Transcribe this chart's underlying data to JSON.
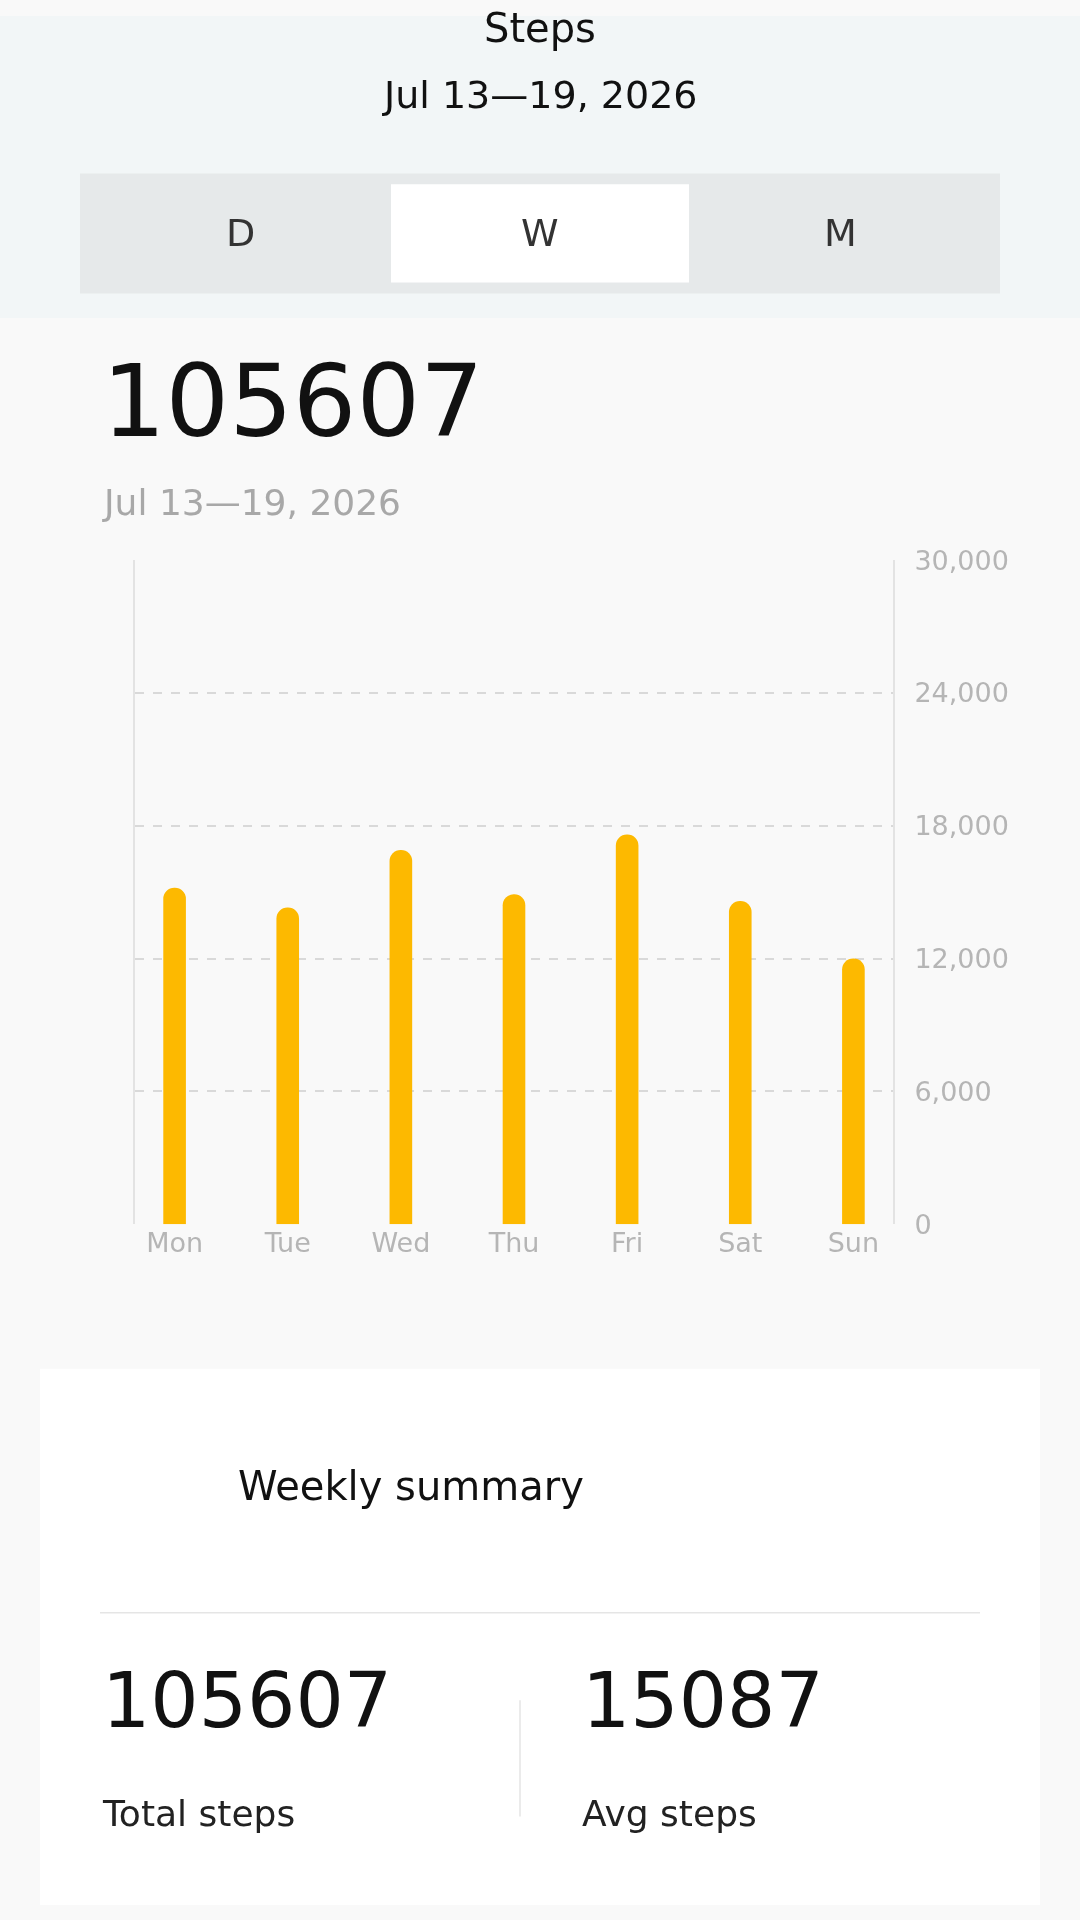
{
  "chart_data": {
    "type": "bar",
    "title": "Steps",
    "subtitle": "Jul 13—19, 2026",
    "categories": [
      "Mon",
      "Tue",
      "Wed",
      "Thu",
      "Fri",
      "Sat",
      "Sun"
    ],
    "values": [
      15200,
      14300,
      16900,
      14900,
      17600,
      14600,
      12000
    ],
    "color": "#fdb900",
    "ylim": [
      0,
      30000
    ],
    "yticks": [
      0,
      {
        "value": 6000,
        "label": "6,000"
      },
      {
        "value": 12000,
        "label": "12,000"
      },
      {
        "value": 18000,
        "label": "18,000"
      },
      {
        "value": 24000,
        "label": "24,000"
      },
      {
        "value": 30000,
        "label": "30,000"
      }
    ],
    "grid": "y",
    "annotations": [
      "D",
      "W",
      "M",
      "105607",
      "Jul 13—19, 2026",
      "Weekly summary",
      "105607",
      "Total steps",
      "15087",
      "Avg steps"
    ]
  }
}
